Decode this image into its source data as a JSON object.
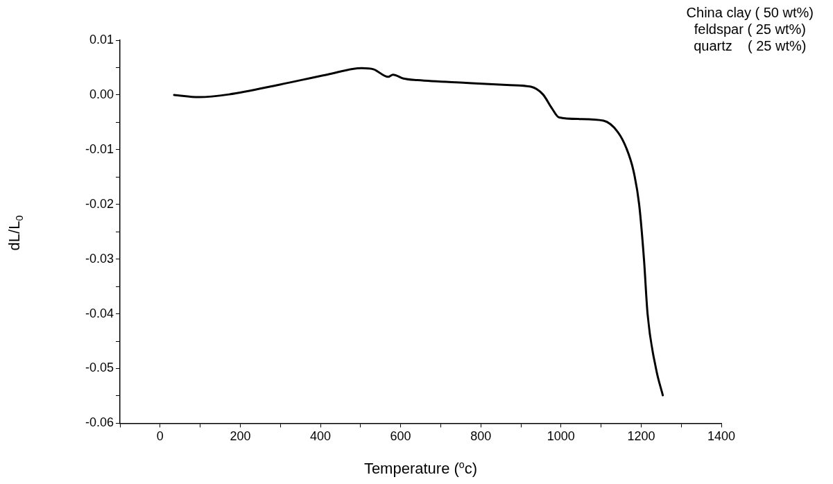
{
  "chart_data": {
    "type": "line",
    "xlabel": "Temperature ($^{o}$c)",
    "ylabel": "dL/L$_{0}$",
    "annotations": [
      "China clay ( 50 wt%)",
      "feldspar ( 25 wt%)",
      "quartz    ( 25 wt%)"
    ],
    "series": [
      {
        "color": "#000000",
        "x": [
          35,
          97,
          172,
          299,
          416,
          503,
          532,
          569,
          581,
          607,
          642,
          763,
          873,
          925,
          955,
          977,
          995,
          1047,
          1106,
          1141,
          1163,
          1181,
          1195,
          1207,
          1216,
          1237,
          1254
        ],
        "values": [
          0.0,
          -0.0004,
          0.0001,
          0.0019,
          0.0037,
          0.0049,
          0.0047,
          0.0033,
          0.0037,
          0.003,
          0.0027,
          0.0022,
          0.0018,
          0.0015,
          0.0001,
          -0.0024,
          -0.0041,
          -0.0044,
          -0.0047,
          -0.0067,
          -0.0097,
          -0.0139,
          -0.02,
          -0.03,
          -0.04,
          -0.05,
          -0.0549
        ]
      }
    ],
    "xlim": [
      -100,
      1400
    ],
    "xticks": [
      {
        "value": -100,
        "label": null
      },
      0,
      {
        "value": 100,
        "label": null
      },
      200,
      {
        "value": 300,
        "label": null
      },
      400,
      {
        "value": 500,
        "label": null
      },
      600,
      {
        "value": 700,
        "label": null
      },
      800,
      {
        "value": 900,
        "label": null
      },
      1000,
      {
        "value": 1100,
        "label": null
      },
      1200,
      {
        "value": 1300,
        "label": null
      },
      1400
    ],
    "ylim": [
      -0.06,
      0.01
    ],
    "yticks": [
      {
        "value": -0.06,
        "label": "-0.06"
      },
      {
        "value": -0.055,
        "label": null
      },
      {
        "value": -0.05,
        "label": "-0.05"
      },
      {
        "value": -0.045,
        "label": null
      },
      {
        "value": -0.04,
        "label": "-0.04"
      },
      {
        "value": -0.035,
        "label": null
      },
      {
        "value": -0.03,
        "label": "-0.03"
      },
      {
        "value": -0.025,
        "label": null
      },
      {
        "value": -0.02,
        "label": "-0.02"
      },
      {
        "value": -0.015,
        "label": null
      },
      {
        "value": -0.01,
        "label": "-0.01"
      },
      {
        "value": -0.005,
        "label": null
      },
      {
        "value": 0,
        "label": "0.00"
      },
      {
        "value": 0.005,
        "label": null
      },
      {
        "value": 0.01,
        "label": "0.01"
      }
    ],
    "grid": false,
    "legend": false,
    "marker": "none",
    "line_style": "solid"
  }
}
